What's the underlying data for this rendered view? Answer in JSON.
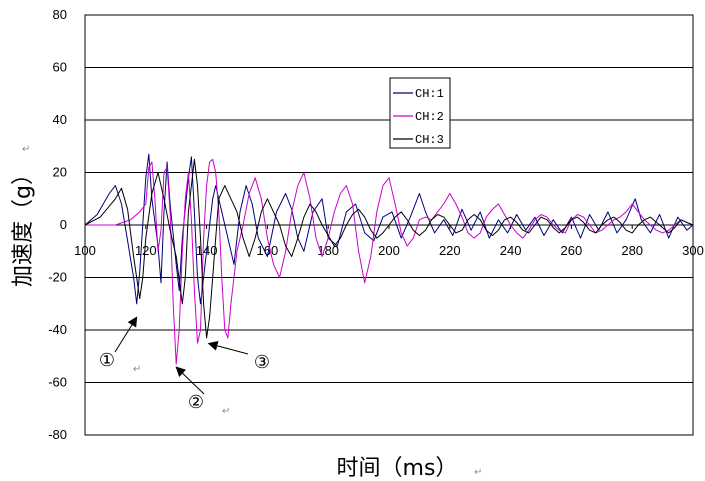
{
  "chart_data": {
    "type": "line",
    "title": "",
    "xlabel": "时间（ms）",
    "ylabel": "加速度（g）",
    "xlim": [
      100,
      300
    ],
    "ylim": [
      -80,
      80
    ],
    "x_ticks": [
      100,
      120,
      140,
      160,
      180,
      200,
      220,
      240,
      260,
      280,
      300
    ],
    "y_ticks": [
      80,
      60,
      40,
      20,
      0,
      -20,
      -40,
      -60,
      -80
    ],
    "grid": "horizontal",
    "legend_position": "center-top",
    "series": [
      {
        "name": "CH:1",
        "color": "#00007a",
        "points": [
          [
            100,
            0
          ],
          [
            104,
            4
          ],
          [
            108,
            12
          ],
          [
            110,
            15
          ],
          [
            112,
            8
          ],
          [
            114,
            -6
          ],
          [
            116,
            -20
          ],
          [
            117,
            -30
          ],
          [
            118,
            -18
          ],
          [
            120,
            18
          ],
          [
            121,
            27
          ],
          [
            122,
            10
          ],
          [
            124,
            -8
          ],
          [
            125,
            -22
          ],
          [
            126,
            5
          ],
          [
            127,
            24
          ],
          [
            128,
            8
          ],
          [
            130,
            -15
          ],
          [
            131,
            -25
          ],
          [
            132,
            -5
          ],
          [
            134,
            18
          ],
          [
            135,
            26
          ],
          [
            136,
            5
          ],
          [
            137,
            -20
          ],
          [
            138,
            -30
          ],
          [
            140,
            -10
          ],
          [
            142,
            10
          ],
          [
            143,
            15
          ],
          [
            145,
            5
          ],
          [
            147,
            -5
          ],
          [
            149,
            -15
          ],
          [
            151,
            5
          ],
          [
            153,
            15
          ],
          [
            155,
            8
          ],
          [
            157,
            -5
          ],
          [
            160,
            -12
          ],
          [
            163,
            5
          ],
          [
            166,
            12
          ],
          [
            168,
            6
          ],
          [
            170,
            -5
          ],
          [
            172,
            -10
          ],
          [
            175,
            5
          ],
          [
            178,
            10
          ],
          [
            180,
            -5
          ],
          [
            183,
            -8
          ],
          [
            186,
            5
          ],
          [
            189,
            8
          ],
          [
            192,
            -3
          ],
          [
            195,
            -6
          ],
          [
            198,
            3
          ],
          [
            201,
            5
          ],
          [
            204,
            -5
          ],
          [
            207,
            3
          ],
          [
            210,
            12
          ],
          [
            212,
            5
          ],
          [
            215,
            -3
          ],
          [
            218,
            2
          ],
          [
            221,
            -4
          ],
          [
            224,
            6
          ],
          [
            227,
            -2
          ],
          [
            230,
            5
          ],
          [
            233,
            -5
          ],
          [
            236,
            2
          ],
          [
            239,
            -3
          ],
          [
            242,
            4
          ],
          [
            245,
            -2
          ],
          [
            248,
            3
          ],
          [
            251,
            -4
          ],
          [
            254,
            2
          ],
          [
            257,
            -3
          ],
          [
            260,
            3
          ],
          [
            263,
            -5
          ],
          [
            266,
            4
          ],
          [
            269,
            -2
          ],
          [
            272,
            5
          ],
          [
            275,
            -3
          ],
          [
            278,
            2
          ],
          [
            281,
            10
          ],
          [
            283,
            2
          ],
          [
            286,
            -3
          ],
          [
            289,
            4
          ],
          [
            292,
            -5
          ],
          [
            295,
            3
          ],
          [
            298,
            -2
          ],
          [
            300,
            0
          ]
        ]
      },
      {
        "name": "CH:2",
        "color": "#cc00cc",
        "points": [
          [
            100,
            0
          ],
          [
            110,
            0
          ],
          [
            115,
            2
          ],
          [
            118,
            5
          ],
          [
            120,
            8
          ],
          [
            121,
            22
          ],
          [
            122,
            24
          ],
          [
            123,
            10
          ],
          [
            124,
            -10
          ],
          [
            125,
            -2
          ],
          [
            126,
            20
          ],
          [
            127,
            22
          ],
          [
            128,
            5
          ],
          [
            129,
            -30
          ],
          [
            130,
            -53
          ],
          [
            131,
            -40
          ],
          [
            132,
            -10
          ],
          [
            133,
            10
          ],
          [
            134,
            20
          ],
          [
            135,
            2
          ],
          [
            136,
            -25
          ],
          [
            137,
            -45
          ],
          [
            138,
            -40
          ],
          [
            139,
            -5
          ],
          [
            140,
            15
          ],
          [
            141,
            24
          ],
          [
            142,
            25
          ],
          [
            143,
            20
          ],
          [
            144,
            5
          ],
          [
            145,
            -20
          ],
          [
            146,
            -40
          ],
          [
            147,
            -43
          ],
          [
            148,
            -30
          ],
          [
            150,
            -10
          ],
          [
            152,
            0
          ],
          [
            154,
            12
          ],
          [
            156,
            18
          ],
          [
            158,
            10
          ],
          [
            160,
            -5
          ],
          [
            162,
            -15
          ],
          [
            164,
            -20
          ],
          [
            166,
            -10
          ],
          [
            168,
            5
          ],
          [
            170,
            15
          ],
          [
            172,
            20
          ],
          [
            174,
            10
          ],
          [
            176,
            -5
          ],
          [
            178,
            -12
          ],
          [
            180,
            -5
          ],
          [
            182,
            5
          ],
          [
            184,
            12
          ],
          [
            186,
            15
          ],
          [
            188,
            8
          ],
          [
            190,
            -10
          ],
          [
            192,
            -22
          ],
          [
            194,
            -12
          ],
          [
            196,
            5
          ],
          [
            198,
            15
          ],
          [
            200,
            18
          ],
          [
            202,
            8
          ],
          [
            204,
            -3
          ],
          [
            206,
            -8
          ],
          [
            208,
            -5
          ],
          [
            210,
            2
          ],
          [
            212,
            3
          ],
          [
            214,
            2
          ],
          [
            216,
            5
          ],
          [
            218,
            8
          ],
          [
            220,
            12
          ],
          [
            222,
            8
          ],
          [
            224,
            3
          ],
          [
            226,
            -3
          ],
          [
            228,
            -5
          ],
          [
            230,
            -3
          ],
          [
            232,
            3
          ],
          [
            234,
            6
          ],
          [
            236,
            8
          ],
          [
            238,
            4
          ],
          [
            240,
            0
          ],
          [
            242,
            -3
          ],
          [
            244,
            -5
          ],
          [
            246,
            -2
          ],
          [
            248,
            2
          ],
          [
            250,
            4
          ],
          [
            252,
            3
          ],
          [
            254,
            0
          ],
          [
            256,
            -2
          ],
          [
            258,
            -3
          ],
          [
            260,
            2
          ],
          [
            262,
            4
          ],
          [
            264,
            3
          ],
          [
            266,
            0
          ],
          [
            268,
            -3
          ],
          [
            270,
            -2
          ],
          [
            272,
            0
          ],
          [
            274,
            2
          ],
          [
            276,
            3
          ],
          [
            278,
            5
          ],
          [
            280,
            8
          ],
          [
            282,
            5
          ],
          [
            284,
            2
          ],
          [
            286,
            0
          ],
          [
            288,
            -2
          ],
          [
            290,
            -3
          ],
          [
            292,
            -2
          ],
          [
            294,
            0
          ],
          [
            296,
            2
          ],
          [
            298,
            1
          ],
          [
            300,
            0
          ]
        ]
      },
      {
        "name": "CH:3",
        "color": "#000000",
        "points": [
          [
            100,
            0
          ],
          [
            105,
            3
          ],
          [
            110,
            10
          ],
          [
            112,
            14
          ],
          [
            114,
            6
          ],
          [
            116,
            -12
          ],
          [
            118,
            -28
          ],
          [
            119,
            -20
          ],
          [
            120,
            -5
          ],
          [
            122,
            12
          ],
          [
            124,
            20
          ],
          [
            126,
            10
          ],
          [
            128,
            -2
          ],
          [
            130,
            -12
          ],
          [
            132,
            -30
          ],
          [
            133,
            -20
          ],
          [
            134,
            5
          ],
          [
            135,
            15
          ],
          [
            136,
            25
          ],
          [
            137,
            15
          ],
          [
            138,
            -5
          ],
          [
            139,
            -30
          ],
          [
            140,
            -43
          ],
          [
            141,
            -35
          ],
          [
            142,
            -20
          ],
          [
            143,
            -5
          ],
          [
            144,
            10
          ],
          [
            146,
            15
          ],
          [
            148,
            10
          ],
          [
            150,
            5
          ],
          [
            152,
            -5
          ],
          [
            154,
            -12
          ],
          [
            156,
            -5
          ],
          [
            158,
            5
          ],
          [
            160,
            10
          ],
          [
            162,
            5
          ],
          [
            164,
            0
          ],
          [
            166,
            -8
          ],
          [
            168,
            -12
          ],
          [
            170,
            -5
          ],
          [
            172,
            3
          ],
          [
            174,
            8
          ],
          [
            176,
            5
          ],
          [
            178,
            0
          ],
          [
            180,
            -4
          ],
          [
            182,
            -8
          ],
          [
            184,
            -5
          ],
          [
            186,
            0
          ],
          [
            188,
            4
          ],
          [
            190,
            6
          ],
          [
            192,
            3
          ],
          [
            194,
            -2
          ],
          [
            196,
            -5
          ],
          [
            198,
            -3
          ],
          [
            200,
            0
          ],
          [
            202,
            3
          ],
          [
            204,
            5
          ],
          [
            206,
            2
          ],
          [
            208,
            -2
          ],
          [
            210,
            -4
          ],
          [
            212,
            -2
          ],
          [
            214,
            2
          ],
          [
            216,
            4
          ],
          [
            218,
            3
          ],
          [
            220,
            0
          ],
          [
            222,
            -3
          ],
          [
            224,
            -2
          ],
          [
            226,
            2
          ],
          [
            228,
            4
          ],
          [
            230,
            2
          ],
          [
            232,
            -2
          ],
          [
            234,
            -4
          ],
          [
            236,
            -2
          ],
          [
            238,
            2
          ],
          [
            240,
            3
          ],
          [
            242,
            1
          ],
          [
            244,
            -2
          ],
          [
            246,
            -3
          ],
          [
            248,
            0
          ],
          [
            250,
            3
          ],
          [
            252,
            2
          ],
          [
            254,
            -1
          ],
          [
            256,
            -3
          ],
          [
            258,
            -1
          ],
          [
            260,
            2
          ],
          [
            262,
            3
          ],
          [
            264,
            1
          ],
          [
            266,
            -2
          ],
          [
            268,
            -3
          ],
          [
            270,
            0
          ],
          [
            272,
            2
          ],
          [
            274,
            3
          ],
          [
            276,
            1
          ],
          [
            278,
            -2
          ],
          [
            280,
            -3
          ],
          [
            282,
            0
          ],
          [
            284,
            2
          ],
          [
            286,
            3
          ],
          [
            288,
            1
          ],
          [
            290,
            -1
          ],
          [
            292,
            -3
          ],
          [
            294,
            -1
          ],
          [
            296,
            2
          ],
          [
            298,
            1
          ],
          [
            300,
            0
          ]
        ]
      }
    ],
    "annotations": [
      {
        "label": "①",
        "x": 117,
        "y": -34
      },
      {
        "label": "②",
        "x": 130,
        "y": -53
      },
      {
        "label": "③",
        "x": 140,
        "y": -44
      }
    ]
  }
}
